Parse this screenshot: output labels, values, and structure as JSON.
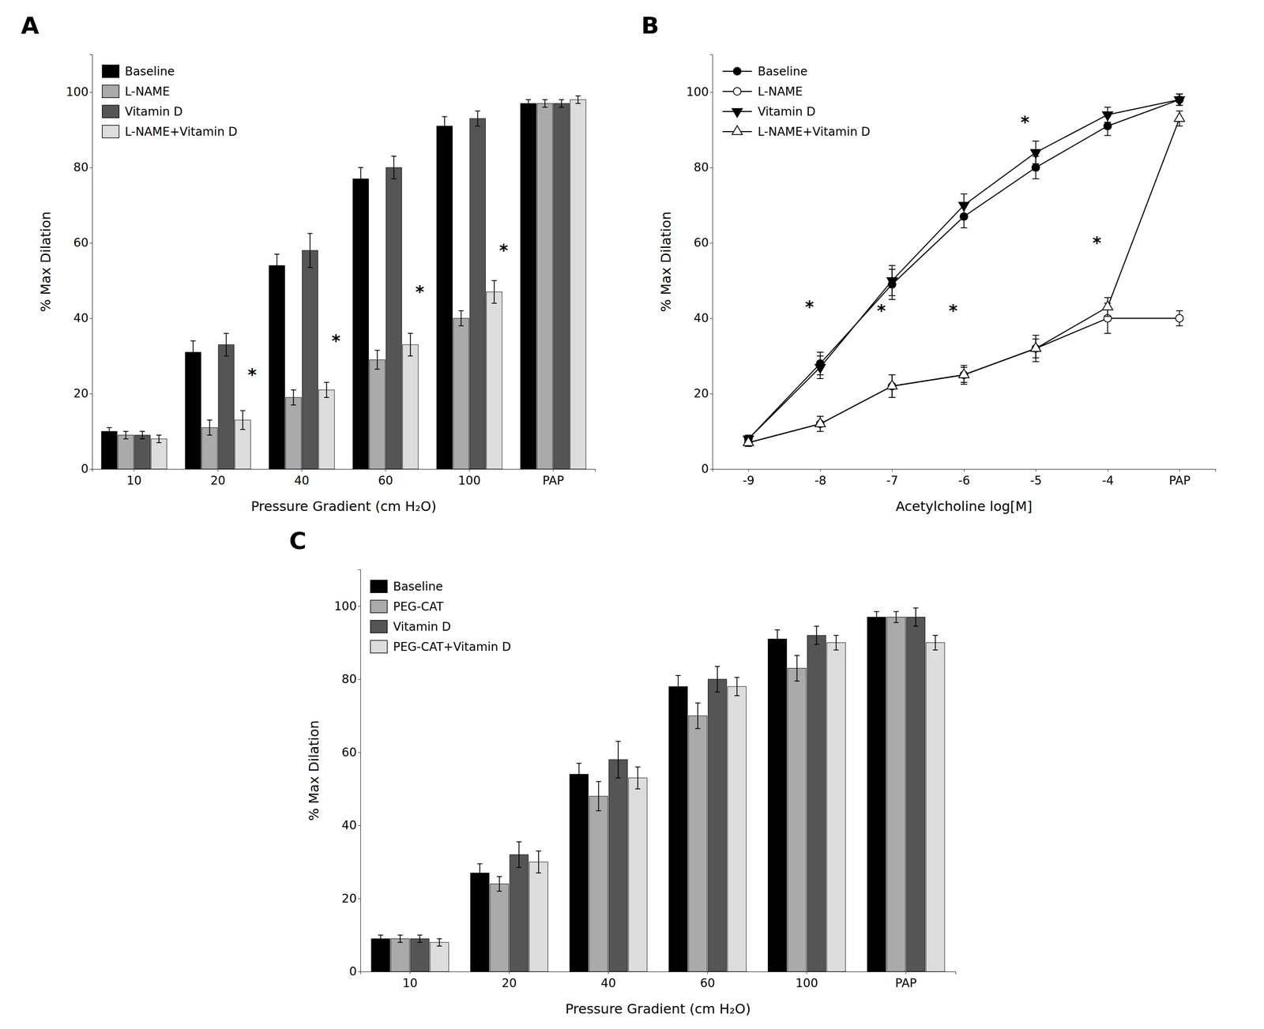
{
  "chart_data": [
    {
      "type": "bar",
      "title": "A",
      "xlabel": "Pressure Gradient (cm H₂O)",
      "ylabel": "% Max Dilation",
      "categories": [
        "10",
        "20",
        "40",
        "60",
        "100",
        "PAP"
      ],
      "series": [
        {
          "name": "Baseline",
          "color": "#000000",
          "values": [
            10,
            31,
            54,
            77,
            91,
            97
          ],
          "errors": [
            1.0,
            3.0,
            3.0,
            3.0,
            2.5,
            1.0
          ]
        },
        {
          "name": "L-NAME",
          "color": "#aaaaaa",
          "values": [
            9,
            11,
            19,
            29,
            40,
            97
          ],
          "errors": [
            1.0,
            2.0,
            2.0,
            2.5,
            2.0,
            1.0
          ]
        },
        {
          "name": "Vitamin D",
          "color": "#555555",
          "values": [
            9,
            33,
            58,
            80,
            93,
            97
          ],
          "errors": [
            1.0,
            3.0,
            4.5,
            3.0,
            2.0,
            1.0
          ]
        },
        {
          "name": "L-NAME+Vitamin D",
          "color": "#dddddd",
          "values": [
            8,
            13,
            21,
            33,
            47,
            98
          ],
          "errors": [
            1.0,
            2.5,
            2.0,
            3.0,
            3.0,
            1.0
          ]
        }
      ],
      "ylim": [
        0,
        110
      ],
      "yticks": [
        0,
        20,
        40,
        60,
        80,
        100
      ],
      "grid": false,
      "legend": "upper-left",
      "annotations": [
        {
          "text": "*",
          "x": "20",
          "y": 25
        },
        {
          "text": "*",
          "x": "40",
          "y": 34
        },
        {
          "text": "*",
          "x": "60",
          "y": 47
        },
        {
          "text": "*",
          "x": "100",
          "y": 58
        }
      ]
    },
    {
      "type": "line",
      "title": "B",
      "xlabel": "Acetylcholine log[M]",
      "ylabel": "% Max Dilation",
      "categories": [
        "-9",
        "-8",
        "-7",
        "-6",
        "-5",
        "-4",
        "PAP"
      ],
      "series": [
        {
          "name": "Baseline",
          "color": "#000000",
          "marker": "circle",
          "line_style": "solid",
          "values": [
            8,
            28,
            49,
            67,
            80,
            91,
            98
          ],
          "errors": [
            1.0,
            3.0,
            4.0,
            3.0,
            3.0,
            2.5,
            1.5
          ]
        },
        {
          "name": "L-NAME",
          "color": "#000000",
          "marker": "circle-open",
          "line_style": "solid",
          "values": [
            7,
            12,
            22,
            25,
            32,
            40,
            40
          ],
          "errors": [
            1.0,
            2.0,
            3.0,
            2.5,
            3.5,
            4.0,
            2.0
          ]
        },
        {
          "name": "Vitamin D",
          "color": "#000000",
          "marker": "triangle-down",
          "line_style": "solid",
          "values": [
            8,
            27,
            50,
            70,
            84,
            94,
            98
          ],
          "errors": [
            1.0,
            3.0,
            4.0,
            3.0,
            3.0,
            2.0,
            1.5
          ]
        },
        {
          "name": "L-NAME+Vitamin D",
          "color": "#000000",
          "marker": "triangle-up-open",
          "line_style": "solid",
          "values": [
            7,
            12,
            22,
            25,
            32,
            43,
            93
          ],
          "errors": [
            1.0,
            2.0,
            3.0,
            2.0,
            2.5,
            2.5,
            2.0
          ]
        }
      ],
      "ylim": [
        0,
        110
      ],
      "yticks": [
        0,
        20,
        40,
        60,
        80,
        100
      ],
      "grid": false,
      "legend": "upper-left",
      "annotations": [
        {
          "text": "*",
          "x": "-8",
          "y": 43
        },
        {
          "text": "*",
          "x": "-7",
          "y": 42
        },
        {
          "text": "*",
          "x": "-6",
          "y": 42
        },
        {
          "text": "*",
          "x": "-5",
          "y": 92
        },
        {
          "text": "*",
          "x": "-4",
          "y": 60
        }
      ]
    },
    {
      "type": "bar",
      "title": "C",
      "xlabel": "Pressure Gradient (cm H₂O)",
      "ylabel": "% Max Dilation",
      "categories": [
        "10",
        "20",
        "40",
        "60",
        "100",
        "PAP"
      ],
      "series": [
        {
          "name": "Baseline",
          "color": "#000000",
          "values": [
            9,
            27,
            54,
            78,
            91,
            97
          ],
          "errors": [
            1.0,
            2.5,
            3.0,
            3.0,
            2.5,
            1.5
          ]
        },
        {
          "name": "PEG-CAT",
          "color": "#aaaaaa",
          "values": [
            9,
            24,
            48,
            70,
            83,
            97
          ],
          "errors": [
            1.0,
            2.0,
            4.0,
            3.5,
            3.5,
            1.5
          ]
        },
        {
          "name": "Vitamin D",
          "color": "#555555",
          "values": [
            9,
            32,
            58,
            80,
            92,
            97
          ],
          "errors": [
            1.0,
            3.5,
            5.0,
            3.5,
            2.5,
            2.5
          ]
        },
        {
          "name": "PEG-CAT+Vitamin D",
          "color": "#dddddd",
          "values": [
            8,
            30,
            53,
            78,
            90,
            90
          ],
          "errors": [
            1.0,
            3.0,
            3.0,
            2.5,
            2.0,
            2.0
          ]
        }
      ],
      "ylim": [
        0,
        110
      ],
      "yticks": [
        0,
        20,
        40,
        60,
        80,
        100
      ],
      "grid": false,
      "legend": "upper-left"
    }
  ]
}
